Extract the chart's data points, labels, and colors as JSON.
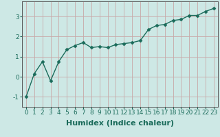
{
  "x": [
    0,
    1,
    2,
    3,
    4,
    5,
    6,
    7,
    8,
    9,
    10,
    11,
    12,
    13,
    14,
    15,
    16,
    17,
    18,
    19,
    20,
    21,
    22,
    23
  ],
  "y": [
    -1.0,
    0.15,
    0.75,
    -0.2,
    0.75,
    1.35,
    1.55,
    1.7,
    1.45,
    1.5,
    1.45,
    1.6,
    1.65,
    1.7,
    1.8,
    2.35,
    2.55,
    2.6,
    2.8,
    2.85,
    3.05,
    3.05,
    3.25,
    3.4
  ],
  "line_color": "#1a6b5a",
  "marker": "D",
  "marker_size": 2.5,
  "linewidth": 1.0,
  "xlabel": "Humidex (Indice chaleur)",
  "xlabel_fontsize": 8,
  "xlim": [
    -0.5,
    23.5
  ],
  "ylim": [
    -1.5,
    3.75
  ],
  "yticks": [
    -1,
    0,
    1,
    2,
    3
  ],
  "xticks": [
    0,
    1,
    2,
    3,
    4,
    5,
    6,
    7,
    8,
    9,
    10,
    11,
    12,
    13,
    14,
    15,
    16,
    17,
    18,
    19,
    20,
    21,
    22,
    23
  ],
  "grid_color": "#c8a8a8",
  "bg_color": "#cde8e5",
  "tick_fontsize": 6.5,
  "tick_color": "#1a6b5a",
  "label_color": "#1a6b5a",
  "fig_bg": "#cde8e5",
  "spine_color": "#555555"
}
